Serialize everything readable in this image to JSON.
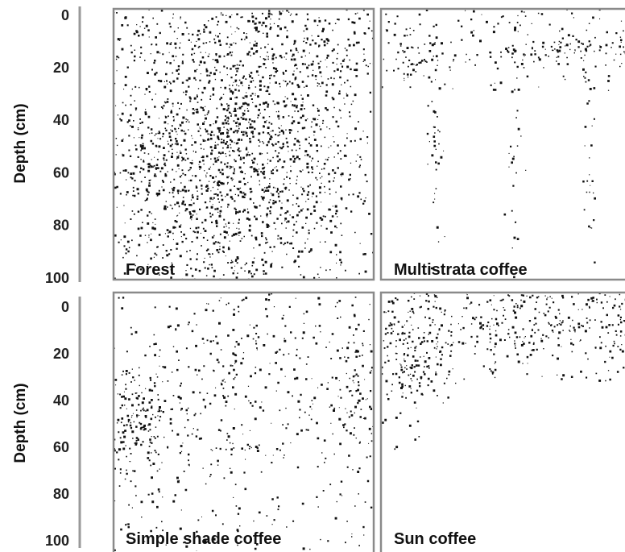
{
  "axes": [
    {
      "label": "Depth (cm)",
      "ticks": [
        0,
        20,
        40,
        60,
        80,
        100
      ]
    },
    {
      "label": "Depth (cm)",
      "ticks": [
        0,
        20,
        40,
        60,
        80,
        100
      ]
    }
  ],
  "panels": [
    {
      "label": "Forest"
    },
    {
      "label": "Multistrata coffee"
    },
    {
      "label": "Simple shade coffee"
    },
    {
      "label": "Sun coffee"
    }
  ]
}
